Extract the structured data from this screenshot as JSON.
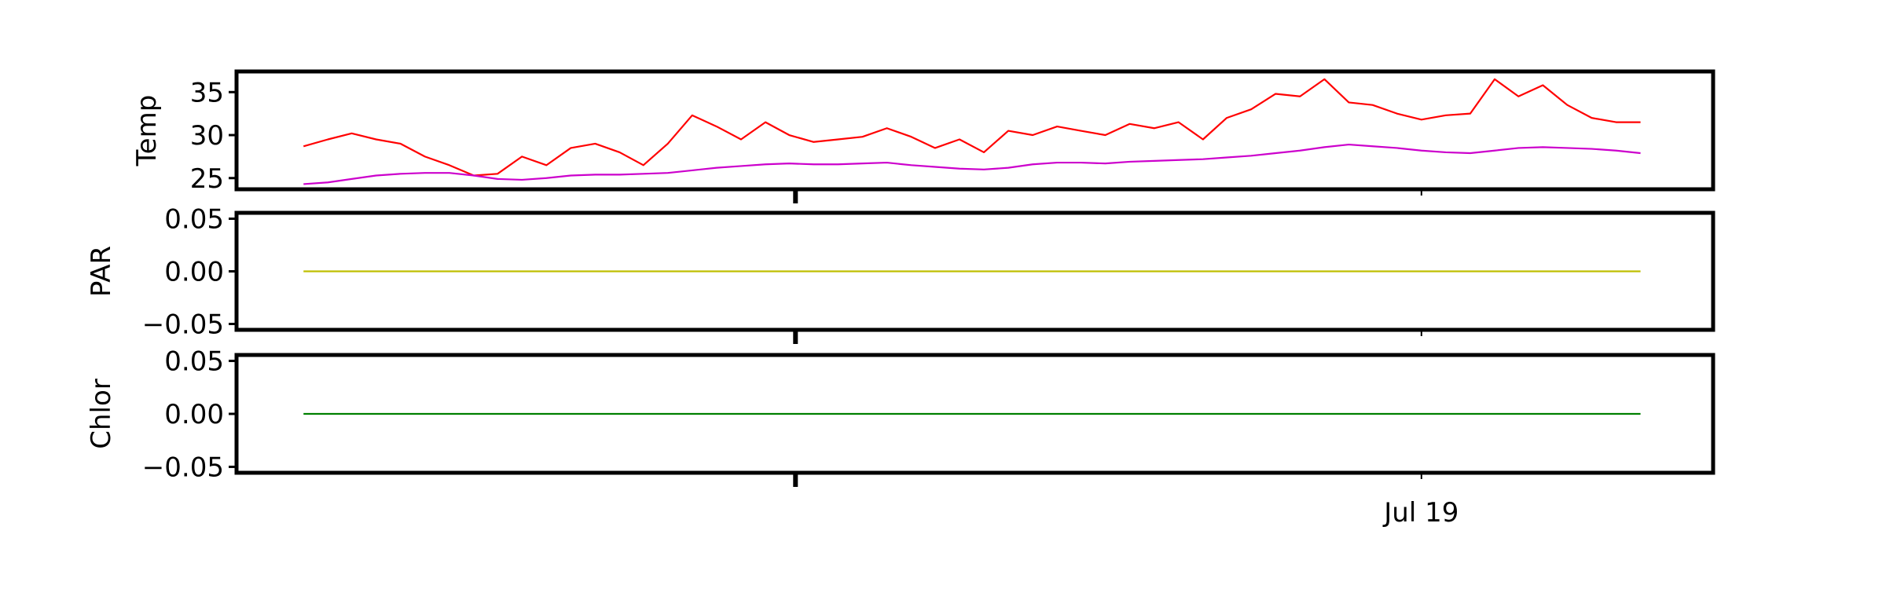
{
  "chart_data": [
    {
      "type": "line",
      "ylabel": "Temp",
      "xlim": [
        17.107,
        19.466
      ],
      "xticks": [
        {
          "value": 18,
          "label": null
        },
        {
          "value": 19,
          "label": null
        }
      ],
      "ylim": [
        23.7,
        37.4
      ],
      "yticks": [
        25,
        30,
        35
      ],
      "series": [
        {
          "color": "#ff0000",
          "x": [
            17.214,
            17.253,
            17.291,
            17.33,
            17.369,
            17.408,
            17.447,
            17.486,
            17.524,
            17.563,
            17.602,
            17.641,
            17.68,
            17.719,
            17.757,
            17.796,
            17.835,
            17.874,
            17.913,
            17.952,
            17.99,
            18.029,
            18.068,
            18.107,
            18.146,
            18.185,
            18.223,
            18.262,
            18.301,
            18.34,
            18.379,
            18.418,
            18.456,
            18.495,
            18.534,
            18.573,
            18.612,
            18.651,
            18.689,
            18.728,
            18.767,
            18.806,
            18.845,
            18.884,
            18.922,
            18.961,
            19.0,
            19.039,
            19.078,
            19.117,
            19.155,
            19.194,
            19.233,
            19.272,
            19.311,
            19.35
          ],
          "values": [
            28.7,
            29.5,
            30.2,
            29.5,
            29.0,
            27.5,
            26.5,
            25.3,
            25.5,
            27.5,
            26.5,
            28.5,
            29.0,
            28.0,
            26.5,
            29.0,
            32.3,
            31.0,
            29.5,
            31.5,
            30.0,
            29.2,
            29.5,
            29.8,
            30.8,
            29.8,
            28.5,
            29.5,
            28.0,
            30.5,
            30.0,
            31.0,
            30.5,
            30.0,
            31.3,
            30.8,
            31.5,
            29.5,
            32.0,
            33.0,
            34.8,
            34.5,
            36.5,
            33.8,
            33.5,
            32.5,
            31.8,
            32.3,
            32.5,
            36.5,
            34.5,
            35.8,
            33.5,
            32.0,
            31.5,
            31.5
          ]
        },
        {
          "color": "#cc00cc",
          "x": [
            17.214,
            17.253,
            17.291,
            17.33,
            17.369,
            17.408,
            17.447,
            17.486,
            17.524,
            17.563,
            17.602,
            17.641,
            17.68,
            17.719,
            17.757,
            17.796,
            17.835,
            17.874,
            17.913,
            17.952,
            17.99,
            18.029,
            18.068,
            18.107,
            18.146,
            18.185,
            18.223,
            18.262,
            18.301,
            18.34,
            18.379,
            18.418,
            18.456,
            18.495,
            18.534,
            18.573,
            18.612,
            18.651,
            18.689,
            18.728,
            18.767,
            18.806,
            18.845,
            18.884,
            18.922,
            18.961,
            19.0,
            19.039,
            19.078,
            19.117,
            19.155,
            19.194,
            19.233,
            19.272,
            19.311,
            19.35
          ],
          "values": [
            24.3,
            24.5,
            24.9,
            25.3,
            25.5,
            25.6,
            25.6,
            25.3,
            24.9,
            24.8,
            25.0,
            25.3,
            25.4,
            25.4,
            25.5,
            25.6,
            25.9,
            26.2,
            26.4,
            26.6,
            26.7,
            26.6,
            26.6,
            26.7,
            26.8,
            26.5,
            26.3,
            26.1,
            26.0,
            26.2,
            26.6,
            26.8,
            26.8,
            26.7,
            26.9,
            27.0,
            27.1,
            27.2,
            27.4,
            27.6,
            27.9,
            28.2,
            28.6,
            28.9,
            28.7,
            28.5,
            28.2,
            28.0,
            27.9,
            28.2,
            28.5,
            28.6,
            28.5,
            28.4,
            28.2,
            27.9
          ]
        }
      ]
    },
    {
      "type": "line",
      "ylabel": "PAR",
      "xlim": [
        17.107,
        19.466
      ],
      "xticks": [
        {
          "value": 18,
          "label": null
        },
        {
          "value": 19,
          "label": null
        }
      ],
      "ylim": [
        -0.0556,
        0.0556
      ],
      "yticks": [
        {
          "value": -0.05,
          "label": "−0.05"
        },
        {
          "value": 0,
          "label": "0.00"
        },
        {
          "value": 0.05,
          "label": "0.05"
        }
      ],
      "series": [
        {
          "color": "#bfbf00",
          "x": [
            17.214,
            19.35
          ],
          "values": [
            0,
            0
          ]
        }
      ]
    },
    {
      "type": "line",
      "ylabel": "Chlor",
      "xlim": [
        17.107,
        19.466
      ],
      "xticks": [
        {
          "value": 18,
          "label": null
        },
        {
          "value": 19,
          "label": "Jul 19"
        }
      ],
      "ylim": [
        -0.0556,
        0.0556
      ],
      "yticks": [
        {
          "value": -0.05,
          "label": "−0.05"
        },
        {
          "value": 0,
          "label": "0.00"
        },
        {
          "value": 0.05,
          "label": "0.05"
        }
      ],
      "series": [
        {
          "color": "#008000",
          "x": [
            17.214,
            19.35
          ],
          "values": [
            0,
            0
          ]
        }
      ]
    }
  ]
}
